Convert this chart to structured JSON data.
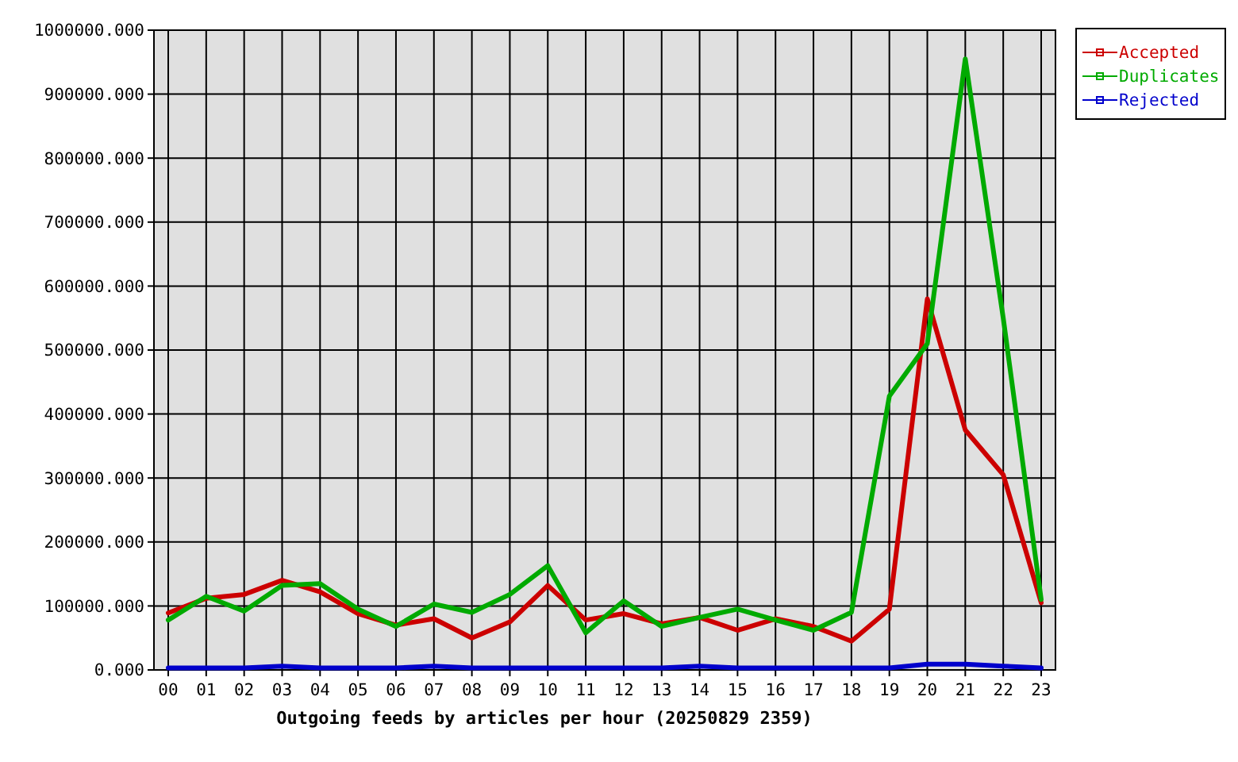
{
  "chart_data": {
    "type": "line",
    "xlabel": "Outgoing feeds by articles per hour (20250829 2359)",
    "categories": [
      "00",
      "01",
      "02",
      "03",
      "04",
      "05",
      "06",
      "07",
      "08",
      "09",
      "10",
      "11",
      "12",
      "13",
      "14",
      "15",
      "16",
      "17",
      "18",
      "19",
      "20",
      "21",
      "22",
      "23"
    ],
    "series": [
      {
        "name": "Accepted",
        "color": "#cc0000",
        "values": [
          89000,
          112000,
          118000,
          140000,
          122000,
          88000,
          70000,
          80000,
          50000,
          75000,
          132000,
          78000,
          88000,
          72000,
          82000,
          62000,
          80000,
          68000,
          45000,
          95000,
          580000,
          375000,
          305000,
          105000
        ]
      },
      {
        "name": "Duplicates",
        "color": "#00aa00",
        "values": [
          78000,
          115000,
          92000,
          132000,
          135000,
          95000,
          68000,
          103000,
          90000,
          118000,
          163000,
          58000,
          108000,
          68000,
          82000,
          95000,
          78000,
          62000,
          90000,
          428000,
          510000,
          955000,
          550000,
          110000
        ]
      },
      {
        "name": "Rejected",
        "color": "#0000cc",
        "values": [
          3000,
          3000,
          3000,
          6000,
          3000,
          3000,
          3000,
          6000,
          3000,
          3000,
          3000,
          3000,
          3000,
          3000,
          6000,
          3000,
          3000,
          3000,
          3000,
          3000,
          9000,
          9000,
          6000,
          3000
        ]
      }
    ],
    "ylim": [
      0,
      1000000
    ],
    "yticks": [
      {
        "value": 0,
        "label": "0.000"
      },
      {
        "value": 100000,
        "label": "100000.000"
      },
      {
        "value": 200000,
        "label": "200000.000"
      },
      {
        "value": 300000,
        "label": "300000.000"
      },
      {
        "value": 400000,
        "label": "400000.000"
      },
      {
        "value": 500000,
        "label": "500000.000"
      },
      {
        "value": 600000,
        "label": "600000.000"
      },
      {
        "value": 700000,
        "label": "700000.000"
      },
      {
        "value": 800000,
        "label": "800000.000"
      },
      {
        "value": 900000,
        "label": "900000.000"
      },
      {
        "value": 1000000,
        "label": "1000000.000"
      }
    ],
    "grid": true,
    "legend": "top right",
    "marker": "none",
    "line_style": "solid"
  }
}
